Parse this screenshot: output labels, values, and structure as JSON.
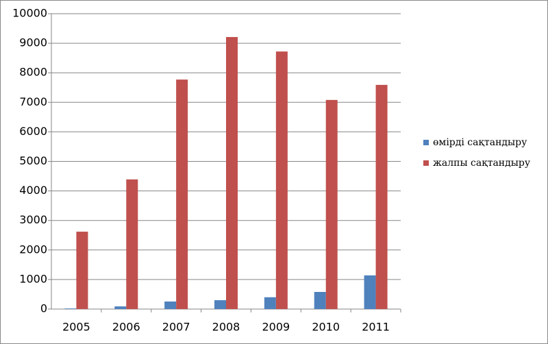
{
  "chart_data": {
    "type": "bar",
    "categories": [
      "2005",
      "2006",
      "2007",
      "2008",
      "2009",
      "2010",
      "2011"
    ],
    "series": [
      {
        "name": "өмірді сақтандыру",
        "color": "#4f81bd",
        "values": [
          20,
          90,
          255,
          300,
          400,
          580,
          1140
        ]
      },
      {
        "name": "жалпы сақтандыру",
        "color": "#c0504d",
        "values": [
          2620,
          4390,
          7770,
          9210,
          8720,
          7080,
          7590
        ]
      }
    ],
    "ylim": [
      0,
      10000
    ],
    "yticks": [
      0,
      1000,
      2000,
      3000,
      4000,
      5000,
      6000,
      7000,
      8000,
      9000,
      10000
    ],
    "grid": true
  }
}
